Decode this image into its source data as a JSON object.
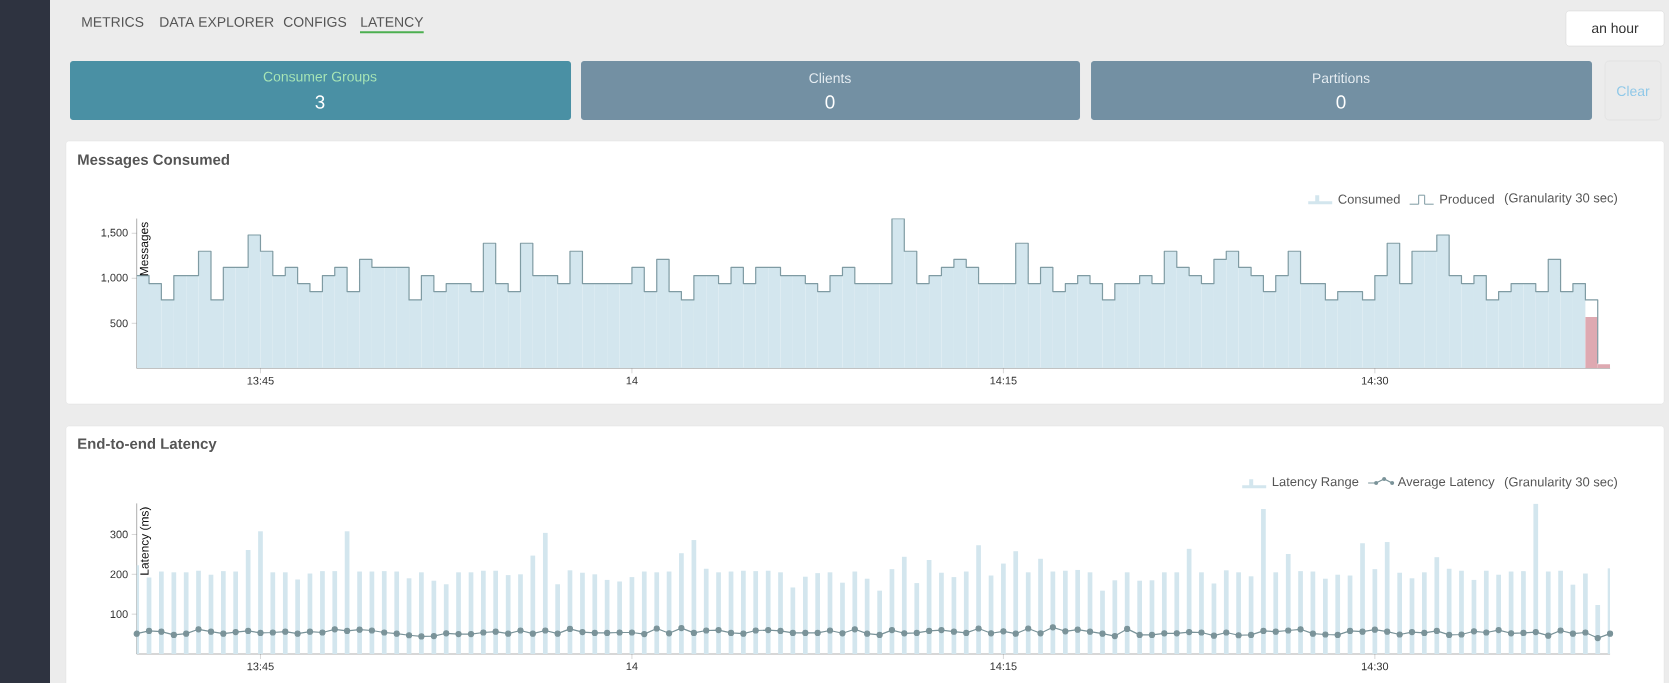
{
  "chart_data": [
    {
      "type": "other",
      "annotations": [
        "METRICS",
        "DATA EXPLORER",
        "CONFIGS",
        "LATENCY",
        "an hour",
        "Consumer Groups",
        "3",
        "Clients",
        "0",
        "Partitions",
        "0",
        "Clear"
      ]
    },
    {
      "type": "bar",
      "title": "Messages Consumed",
      "ylabel": "Messages",
      "legend": "top right",
      "annotations": [
        "(Granularity 30 sec)"
      ],
      "x": [
        13.6667,
        13.675,
        13.6833,
        13.6917,
        13.7,
        13.7083,
        13.7167,
        13.725,
        13.7333,
        13.7417,
        13.75,
        13.7583,
        13.7667,
        13.775,
        13.7833,
        13.7917,
        13.8,
        13.8083,
        13.8167,
        13.825,
        13.8333,
        13.8417,
        13.85,
        13.8583,
        13.8667,
        13.875,
        13.8833,
        13.8917,
        13.9,
        13.9083,
        13.9167,
        13.925,
        13.9333,
        13.9417,
        13.95,
        13.9583,
        13.9667,
        13.975,
        13.9833,
        13.9917,
        14,
        14.0083,
        14.0167,
        14.025,
        14.0333,
        14.0417,
        14.05,
        14.0583,
        14.0667,
        14.075,
        14.0833,
        14.0917,
        14.1,
        14.1083,
        14.1167,
        14.125,
        14.1333,
        14.1417,
        14.15,
        14.1583,
        14.1667,
        14.175,
        14.1833,
        14.1917,
        14.2,
        14.2083,
        14.2167,
        14.225,
        14.2333,
        14.2417,
        14.25,
        14.2583,
        14.2667,
        14.275,
        14.2833,
        14.2917,
        14.3,
        14.3083,
        14.3167,
        14.325,
        14.3333,
        14.3417,
        14.35,
        14.3583,
        14.3667,
        14.375,
        14.3833,
        14.3917,
        14.4,
        14.4083,
        14.4167,
        14.425,
        14.4333,
        14.4417,
        14.45,
        14.4583,
        14.4667,
        14.475,
        14.4833,
        14.4917,
        14.5,
        14.5083,
        14.5167,
        14.525,
        14.5333,
        14.5417,
        14.55,
        14.5583,
        14.5667,
        14.575,
        14.5833,
        14.5917,
        14.6,
        14.6083,
        14.6167,
        14.625,
        14.6333,
        14.6417,
        14.65
      ],
      "xlim": [
        13.6667,
        14.6583
      ],
      "ylim": [
        0,
        1663
      ],
      "xticks": [
        {
          "value": 13.75,
          "label": "13:45"
        },
        14,
        {
          "value": 14.25,
          "label": "14:15"
        },
        {
          "value": 14.5,
          "label": "14:30"
        }
      ],
      "yticks": [
        500,
        {
          "value": 1000,
          "label": "1,000"
        },
        {
          "value": 1500,
          "label": "1,500"
        }
      ],
      "series": [
        {
          "name": "Consumed",
          "type": "bar",
          "color": "#d3e6ee",
          "colors": [
            "#d3e6ee",
            "#d3e6ee",
            "#d3e6ee",
            "#d3e6ee",
            "#d3e6ee",
            "#d3e6ee",
            "#d3e6ee",
            "#d3e6ee",
            "#d3e6ee",
            "#d3e6ee",
            "#d3e6ee",
            "#d3e6ee",
            "#d3e6ee",
            "#d3e6ee",
            "#d3e6ee",
            "#d3e6ee",
            "#d3e6ee",
            "#d3e6ee",
            "#d3e6ee",
            "#d3e6ee",
            "#d3e6ee",
            "#d3e6ee",
            "#d3e6ee",
            "#d3e6ee",
            "#d3e6ee",
            "#d3e6ee",
            "#d3e6ee",
            "#d3e6ee",
            "#d3e6ee",
            "#d3e6ee",
            "#d3e6ee",
            "#d3e6ee",
            "#d3e6ee",
            "#d3e6ee",
            "#d3e6ee",
            "#d3e6ee",
            "#d3e6ee",
            "#d3e6ee",
            "#d3e6ee",
            "#d3e6ee",
            "#d3e6ee",
            "#d3e6ee",
            "#d3e6ee",
            "#d3e6ee",
            "#d3e6ee",
            "#d3e6ee",
            "#d3e6ee",
            "#d3e6ee",
            "#d3e6ee",
            "#d3e6ee",
            "#d3e6ee",
            "#d3e6ee",
            "#d3e6ee",
            "#d3e6ee",
            "#d3e6ee",
            "#d3e6ee",
            "#d3e6ee",
            "#d3e6ee",
            "#d3e6ee",
            "#d3e6ee",
            "#d3e6ee",
            "#d3e6ee",
            "#d3e6ee",
            "#d3e6ee",
            "#d3e6ee",
            "#d3e6ee",
            "#d3e6ee",
            "#d3e6ee",
            "#d3e6ee",
            "#d3e6ee",
            "#d3e6ee",
            "#d3e6ee",
            "#d3e6ee",
            "#d3e6ee",
            "#d3e6ee",
            "#d3e6ee",
            "#d3e6ee",
            "#d3e6ee",
            "#d3e6ee",
            "#d3e6ee",
            "#d3e6ee",
            "#d3e6ee",
            "#d3e6ee",
            "#d3e6ee",
            "#d3e6ee",
            "#d3e6ee",
            "#d3e6ee",
            "#d3e6ee",
            "#d3e6ee",
            "#d3e6ee",
            "#d3e6ee",
            "#d3e6ee",
            "#d3e6ee",
            "#d3e6ee",
            "#d3e6ee",
            "#d3e6ee",
            "#d3e6ee",
            "#d3e6ee",
            "#d3e6ee",
            "#d3e6ee",
            "#d3e6ee",
            "#d3e6ee",
            "#d3e6ee",
            "#d3e6ee",
            "#d3e6ee",
            "#d3e6ee",
            "#d3e6ee",
            "#d3e6ee",
            "#d3e6ee",
            "#d3e6ee",
            "#d3e6ee",
            "#d3e6ee",
            "#d3e6ee",
            "#d3e6ee",
            "#d3e6ee",
            "#d3e6ee",
            "#d3e6ee",
            "#dea9b1",
            "#dea9b1"
          ],
          "values": [
            1030,
            941,
            759,
            1030,
            1030,
            1300,
            759,
            1122,
            1122,
            1481,
            1300,
            1030,
            1122,
            941,
            852,
            1030,
            1122,
            852,
            1211,
            1122,
            1122,
            1122,
            759,
            1030,
            852,
            941,
            941,
            852,
            1389,
            941,
            852,
            1389,
            1030,
            1030,
            941,
            1300,
            941,
            941,
            941,
            941,
            1122,
            852,
            1211,
            852,
            759,
            1030,
            1030,
            941,
            1122,
            941,
            1122,
            1122,
            1030,
            1030,
            941,
            852,
            1030,
            1122,
            941,
            941,
            941,
            1663,
            1300,
            941,
            1030,
            1122,
            1211,
            1122,
            941,
            941,
            941,
            1389,
            941,
            1122,
            852,
            941,
            1030,
            941,
            759,
            941,
            941,
            1030,
            941,
            1300,
            1122,
            1030,
            941,
            1211,
            1300,
            1122,
            1030,
            852,
            1030,
            1300,
            941,
            941,
            759,
            852,
            852,
            759,
            1030,
            1389,
            941,
            1300,
            1300,
            1481,
            1030,
            941,
            1030,
            759,
            852,
            941,
            941,
            852,
            1211,
            852,
            941,
            570,
            44
          ]
        },
        {
          "name": "Produced",
          "type": "step",
          "color": "#7f9ba3",
          "values": [
            1030,
            941,
            759,
            1030,
            1030,
            1300,
            759,
            1122,
            1122,
            1481,
            1300,
            1030,
            1122,
            941,
            852,
            1030,
            1122,
            852,
            1211,
            1122,
            1122,
            1122,
            759,
            1030,
            852,
            941,
            941,
            852,
            1389,
            941,
            852,
            1389,
            1030,
            1030,
            941,
            1300,
            941,
            941,
            941,
            941,
            1122,
            852,
            1211,
            852,
            759,
            1030,
            1030,
            941,
            1122,
            941,
            1122,
            1122,
            1030,
            1030,
            941,
            852,
            1030,
            1122,
            941,
            941,
            941,
            1663,
            1300,
            941,
            1030,
            1122,
            1211,
            1122,
            941,
            941,
            941,
            1389,
            941,
            1122,
            852,
            941,
            1030,
            941,
            759,
            941,
            941,
            1030,
            941,
            1300,
            1122,
            1030,
            941,
            1211,
            1300,
            1122,
            1030,
            852,
            1030,
            1300,
            941,
            941,
            759,
            852,
            852,
            759,
            1030,
            1389,
            941,
            1300,
            1300,
            1481,
            1030,
            941,
            1030,
            759,
            852,
            941,
            941,
            852,
            1211,
            852,
            941,
            759,
            52
          ]
        }
      ]
    },
    {
      "type": "bar",
      "title": "End-to-end Latency",
      "ylabel": "Latency (ms)",
      "legend": "top right",
      "marker": "circle",
      "annotations": [
        "(Granularity 30 sec)"
      ],
      "x": [
        13.6667,
        13.675,
        13.6833,
        13.6917,
        13.7,
        13.7083,
        13.7167,
        13.725,
        13.7333,
        13.7417,
        13.75,
        13.7583,
        13.7667,
        13.775,
        13.7833,
        13.7917,
        13.8,
        13.8083,
        13.8167,
        13.825,
        13.8333,
        13.8417,
        13.85,
        13.8583,
        13.8667,
        13.875,
        13.8833,
        13.8917,
        13.9,
        13.9083,
        13.9167,
        13.925,
        13.9333,
        13.9417,
        13.95,
        13.9583,
        13.9667,
        13.975,
        13.9833,
        13.9917,
        14,
        14.0083,
        14.0167,
        14.025,
        14.0333,
        14.0417,
        14.05,
        14.0583,
        14.0667,
        14.075,
        14.0833,
        14.0917,
        14.1,
        14.1083,
        14.1167,
        14.125,
        14.1333,
        14.1417,
        14.15,
        14.1583,
        14.1667,
        14.175,
        14.1833,
        14.1917,
        14.2,
        14.2083,
        14.2167,
        14.225,
        14.2333,
        14.2417,
        14.25,
        14.2583,
        14.2667,
        14.275,
        14.2833,
        14.2917,
        14.3,
        14.3083,
        14.3167,
        14.325,
        14.3333,
        14.3417,
        14.35,
        14.3583,
        14.3667,
        14.375,
        14.3833,
        14.3917,
        14.4,
        14.4083,
        14.4167,
        14.425,
        14.4333,
        14.4417,
        14.45,
        14.4583,
        14.4667,
        14.475,
        14.4833,
        14.4917,
        14.5,
        14.5083,
        14.5167,
        14.525,
        14.5333,
        14.5417,
        14.55,
        14.5583,
        14.5667,
        14.575,
        14.5833,
        14.5917,
        14.6,
        14.6083,
        14.6167,
        14.625,
        14.6333,
        14.6417,
        14.65,
        14.6583
      ],
      "xlim": [
        13.6667,
        14.6583
      ],
      "ylim": [
        0,
        378
      ],
      "xticks": [
        {
          "value": 13.75,
          "label": "13:45"
        },
        14,
        {
          "value": 14.25,
          "label": "14:15"
        },
        {
          "value": 14.5,
          "label": "14:30"
        }
      ],
      "yticks": [
        100,
        200,
        300
      ],
      "series": [
        {
          "name": "Latency Range",
          "type": "bar",
          "color": "#d3e6ee",
          "values": [
            223,
            192,
            207,
            205,
            205,
            209,
            199,
            208,
            207,
            261,
            308,
            205,
            205,
            187,
            202,
            208,
            208,
            308,
            207,
            207,
            208,
            207,
            190,
            205,
            184,
            175,
            205,
            205,
            209,
            209,
            198,
            200,
            247,
            304,
            175,
            210,
            204,
            200,
            186,
            182,
            193,
            207,
            205,
            207,
            253,
            286,
            214,
            205,
            207,
            209,
            208,
            209,
            205,
            167,
            194,
            203,
            205,
            179,
            207,
            189,
            159,
            213,
            244,
            178,
            236,
            204,
            193,
            207,
            273,
            197,
            227,
            258,
            205,
            239,
            207,
            209,
            211,
            205,
            159,
            185,
            205,
            184,
            185,
            205,
            205,
            264,
            205,
            177,
            210,
            205,
            195,
            364,
            205,
            251,
            208,
            207,
            189,
            199,
            197,
            278,
            213,
            281,
            204,
            190,
            205,
            243,
            214,
            209,
            186,
            209,
            199,
            207,
            208,
            377,
            207,
            209,
            174,
            202,
            123,
            215
          ]
        },
        {
          "name": "Average Latency",
          "type": "line",
          "color": "#7a9399",
          "values": [
            51,
            58,
            56,
            48,
            51,
            62,
            56,
            51,
            55,
            58,
            53,
            54,
            56,
            51,
            56,
            54,
            62,
            58,
            61,
            59,
            54,
            51,
            47,
            44,
            45,
            52,
            50,
            50,
            54,
            56,
            51,
            59,
            51,
            59,
            51,
            63,
            55,
            53,
            53,
            54,
            54,
            50,
            64,
            52,
            65,
            53,
            59,
            60,
            53,
            51,
            59,
            60,
            58,
            53,
            53,
            53,
            59,
            52,
            62,
            51,
            48,
            60,
            52,
            53,
            58,
            60,
            56,
            53,
            64,
            52,
            57,
            51,
            64,
            52,
            67,
            57,
            61,
            56,
            51,
            45,
            63,
            48,
            48,
            52,
            52,
            55,
            54,
            46,
            54,
            47,
            48,
            58,
            56,
            59,
            62,
            51,
            49,
            48,
            58,
            56,
            61,
            56,
            49,
            55,
            53,
            58,
            48,
            49,
            57,
            54,
            60,
            52,
            53,
            55,
            46,
            59,
            51,
            54,
            40,
            51
          ]
        }
      ]
    }
  ]
}
